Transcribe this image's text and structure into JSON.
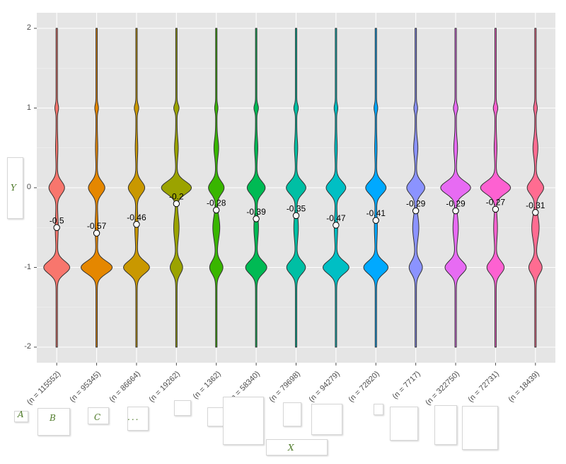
{
  "chart_data": {
    "type": "violin",
    "title": "",
    "xlabel": "X",
    "ylabel": "Y",
    "ylim": [
      -2.2,
      2.2
    ],
    "yticks": [
      2,
      1,
      0,
      -1,
      -2
    ],
    "grid": true,
    "categories": [
      "(n = 115552)",
      "(n = 95345)",
      "(n = 86664)",
      "(n = 19262)",
      "(n = 1362)",
      "(n = 58340)",
      "(n = 79698)",
      "(n = 94279)",
      "(n = 72820)",
      "(n = 7717)",
      "(n = 322750)",
      "(n = 72731)",
      "(n = 18439)"
    ],
    "means": [
      -0.5,
      -0.57,
      -0.46,
      -0.2,
      -0.28,
      -0.39,
      -0.35,
      -0.47,
      -0.41,
      -0.29,
      -0.29,
      -0.27,
      -0.31
    ],
    "mean_labels": [
      "-0.5",
      "-0.57",
      "-0.46",
      "-0.2",
      "-0.28",
      "-0.39",
      "-0.35",
      "-0.47",
      "-0.41",
      "-0.29",
      "-0.29",
      "-0.27",
      "-0.31"
    ],
    "colors": [
      "#F8766D",
      "#E58700",
      "#C99800",
      "#A3A500",
      "#6BB100",
      "#00BA38",
      "#00BF7D",
      "#00C0AF",
      "#00BCD8",
      "#00B0F6",
      "#619CFF",
      "#B983FF",
      "#E76BF3",
      "#FD61D1",
      "#FF67A4"
    ],
    "series_colors": [
      "#F8766D",
      "#E58700",
      "#C99800",
      "#9BA300",
      "#39B600",
      "#00BA54",
      "#00BFA4",
      "#00BFC4",
      "#00A9FF",
      "#8B93FF",
      "#E76BF3",
      "#FD61D1",
      "#FF6C91"
    ],
    "density_widths": [
      {
        "-1": 0.62,
        "0": 0.36,
        "1": 0.06,
        "-0.5": 0.04
      },
      {
        "-1": 0.75,
        "0": 0.38,
        "1": 0.06,
        "-0.5": 0.04
      },
      {
        "-1": 0.62,
        "0": 0.38,
        "1": 0.08,
        "-0.5": 0.05
      },
      {
        "-1": 0.28,
        "0": 0.72,
        "1": 0.1,
        "-0.5": 0.1
      },
      {
        "-1": 0.3,
        "0": 0.36,
        "1": 0.05,
        "-0.5": 0.14
      },
      {
        "-1": 0.5,
        "0": 0.42,
        "1": 0.08,
        "-0.5": 0.08
      },
      {
        "-1": 0.44,
        "0": 0.46,
        "1": 0.08,
        "-0.5": 0.08
      },
      {
        "-1": 0.62,
        "0": 0.46,
        "1": 0.06,
        "-0.5": 0.05
      },
      {
        "-1": 0.58,
        "0": 0.48,
        "1": 0.06,
        "-0.5": 0.04
      },
      {
        "-1": 0.3,
        "0": 0.42,
        "1": 0.06,
        "-0.5": 0.12
      },
      {
        "-1": 0.5,
        "0": 0.72,
        "1": 0.08,
        "-0.5": 0.1
      },
      {
        "-1": 0.4,
        "0": 0.72,
        "1": 0.08,
        "-0.5": 0.06
      },
      {
        "-1": 0.3,
        "0": 0.38,
        "1": 0.06,
        "-0.5": 0.15
      }
    ]
  },
  "axis_cards": {
    "x_letters": [
      "A",
      "B",
      "C",
      "..."
    ],
    "ylabel": "Y",
    "xlabel": "X"
  }
}
